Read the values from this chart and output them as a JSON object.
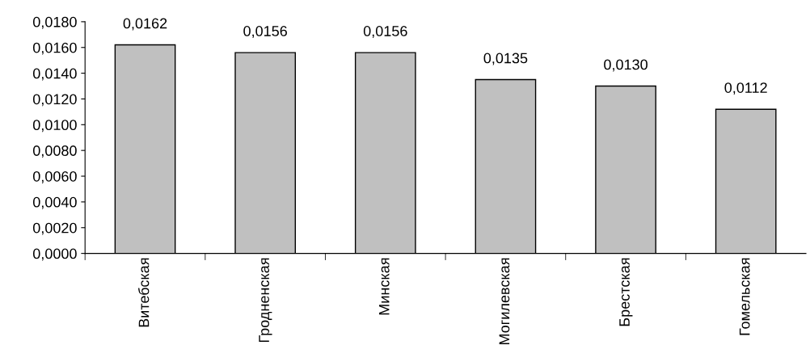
{
  "chart_data": {
    "type": "bar",
    "categories": [
      "Витебская",
      "Гродненская",
      "Минская",
      "Могилевская",
      "Брестская",
      "Гомельская"
    ],
    "values": [
      0.0162,
      0.0156,
      0.0156,
      0.0135,
      0.013,
      0.0112
    ],
    "value_labels": [
      "0,0162",
      "0,0156",
      "0,0156",
      "0,0135",
      "0,0130",
      "0,0112"
    ],
    "color": "#c0c0c0",
    "ylim": [
      0,
      0.018
    ],
    "yticks": [
      {
        "value": 0,
        "label": "0,0000"
      },
      {
        "value": 0.002,
        "label": "0,0020"
      },
      {
        "value": 0.004,
        "label": "0,0040"
      },
      {
        "value": 0.006,
        "label": "0,0060"
      },
      {
        "value": 0.008,
        "label": "0,0080"
      },
      {
        "value": 0.01,
        "label": "0,0100"
      },
      {
        "value": 0.012,
        "label": "0,0120"
      },
      {
        "value": 0.014,
        "label": "0,0140"
      },
      {
        "value": 0.016,
        "label": "0,0160"
      },
      {
        "value": 0.018,
        "label": "0,0180"
      }
    ],
    "grid": false
  }
}
